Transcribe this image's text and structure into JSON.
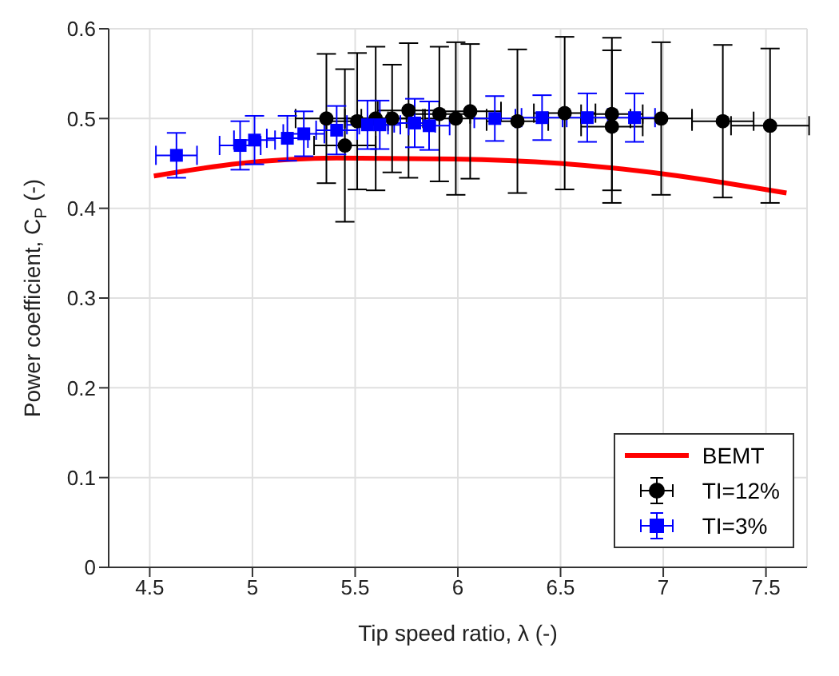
{
  "chart_data": {
    "type": "scatter",
    "xlabel": "Tip speed ratio, λ (-)",
    "ylabel": "Power coefficient, C$_{P}$ (-)",
    "xlim": [
      4.3,
      7.7
    ],
    "xticks": [
      4.5,
      5,
      5.5,
      6,
      6.5,
      7,
      7.5
    ],
    "ylim": [
      0,
      0.6
    ],
    "yticks": [
      0,
      0.1,
      0.2,
      0.3,
      0.4,
      0.5,
      0.6
    ],
    "grid": true,
    "legend": "bottom right",
    "series": [
      {
        "name": "BEMT",
        "type": "line",
        "color": "#ff0000",
        "marker": "none",
        "x": [
          4.52,
          4.94,
          5.41,
          5.98,
          6.5,
          7.01,
          7.6
        ],
        "values": [
          0.436,
          0.45,
          0.456,
          0.455,
          0.45,
          0.438,
          0.417
        ]
      },
      {
        "name": "TI=12%",
        "type": "scatter",
        "color": "#000000",
        "marker": "circle",
        "x": [
          5.36,
          5.45,
          5.51,
          5.6,
          5.68,
          5.76,
          5.91,
          5.99,
          6.06,
          6.29,
          6.52,
          6.75,
          6.75,
          6.99,
          7.29,
          7.52
        ],
        "values": [
          0.5,
          0.47,
          0.497,
          0.5,
          0.5,
          0.509,
          0.505,
          0.5,
          0.508,
          0.497,
          0.506,
          0.505,
          0.491,
          0.5,
          0.497,
          0.492
        ],
        "errors": [
          0.072,
          0.085,
          0.076,
          0.08,
          0.06,
          0.075,
          0.075,
          0.085,
          0.075,
          0.08,
          0.085,
          0.085,
          0.085,
          0.085,
          0.085,
          0.086
        ],
        "xerrors": [
          0.15,
          0.15,
          0.15,
          0.15,
          0.15,
          0.15,
          0.15,
          0.15,
          0.15,
          0.15,
          0.15,
          0.15,
          0.15,
          0.15,
          0.15,
          0.19
        ]
      },
      {
        "name": "TI=3%",
        "type": "scatter",
        "color": "#0000ff",
        "marker": "square",
        "x": [
          4.63,
          4.94,
          5.01,
          5.17,
          5.25,
          5.41,
          5.56,
          5.62,
          5.79,
          5.86,
          6.18,
          6.41,
          6.63,
          6.86
        ],
        "values": [
          0.459,
          0.47,
          0.476,
          0.478,
          0.483,
          0.487,
          0.493,
          0.493,
          0.495,
          0.492,
          0.5,
          0.501,
          0.501,
          0.501
        ],
        "errors": [
          0.025,
          0.027,
          0.027,
          0.025,
          0.025,
          0.027,
          0.027,
          0.027,
          0.027,
          0.027,
          0.025,
          0.025,
          0.027,
          0.027
        ],
        "xerrors": [
          0.1,
          0.1,
          0.1,
          0.1,
          0.1,
          0.1,
          0.1,
          0.1,
          0.1,
          0.1,
          0.1,
          0.1,
          0.1,
          0.1
        ]
      }
    ]
  }
}
